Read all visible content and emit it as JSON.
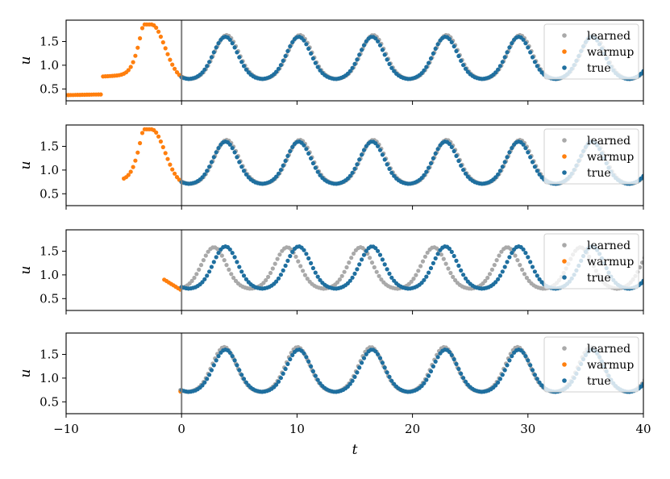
{
  "chart_data": {
    "type": "scatter",
    "xlabel": "t",
    "ylabel": "u",
    "xlim": [
      -10,
      40
    ],
    "ylim": [
      0.25,
      1.95
    ],
    "x_ticks": [
      "−10",
      "0",
      "10",
      "20",
      "30",
      "40"
    ],
    "x_tick_values": [
      -10,
      0,
      10,
      20,
      30,
      40
    ],
    "y_ticks": [
      "0.5",
      "1.0",
      "1.5"
    ],
    "y_tick_values": [
      0.5,
      1.0,
      1.5
    ],
    "legend": {
      "placement": "top-right",
      "entries": [
        "learned",
        "warmup",
        "true"
      ]
    },
    "colors": {
      "learned": "#a9a9a9",
      "warmup": "#ff7f0e",
      "true": "#1f6f9f",
      "vline": "#808080"
    },
    "vline_x": 0,
    "oscillation": {
      "period": 6.35,
      "first_peak_t": 3.8,
      "u_min": 0.7,
      "u_max": 1.6
    },
    "panels": [
      {
        "warmup_start": -10,
        "warmup_peak_t": -2.6,
        "learned_phase_shift": 0.1,
        "learned_amp_scale": 1.04
      },
      {
        "warmup_start": -5,
        "warmup_peak_t": -2.6,
        "learned_phase_shift": 0.1,
        "learned_amp_scale": 1.04
      },
      {
        "warmup_start": -1.5,
        "warmup_peak_t": null,
        "learned_phase_shift": -1.0,
        "learned_amp_scale": 0.98
      },
      {
        "warmup_start": -0.1,
        "warmup_peak_t": null,
        "learned_phase_shift": -0.1,
        "learned_amp_scale": 1.06
      }
    ]
  }
}
